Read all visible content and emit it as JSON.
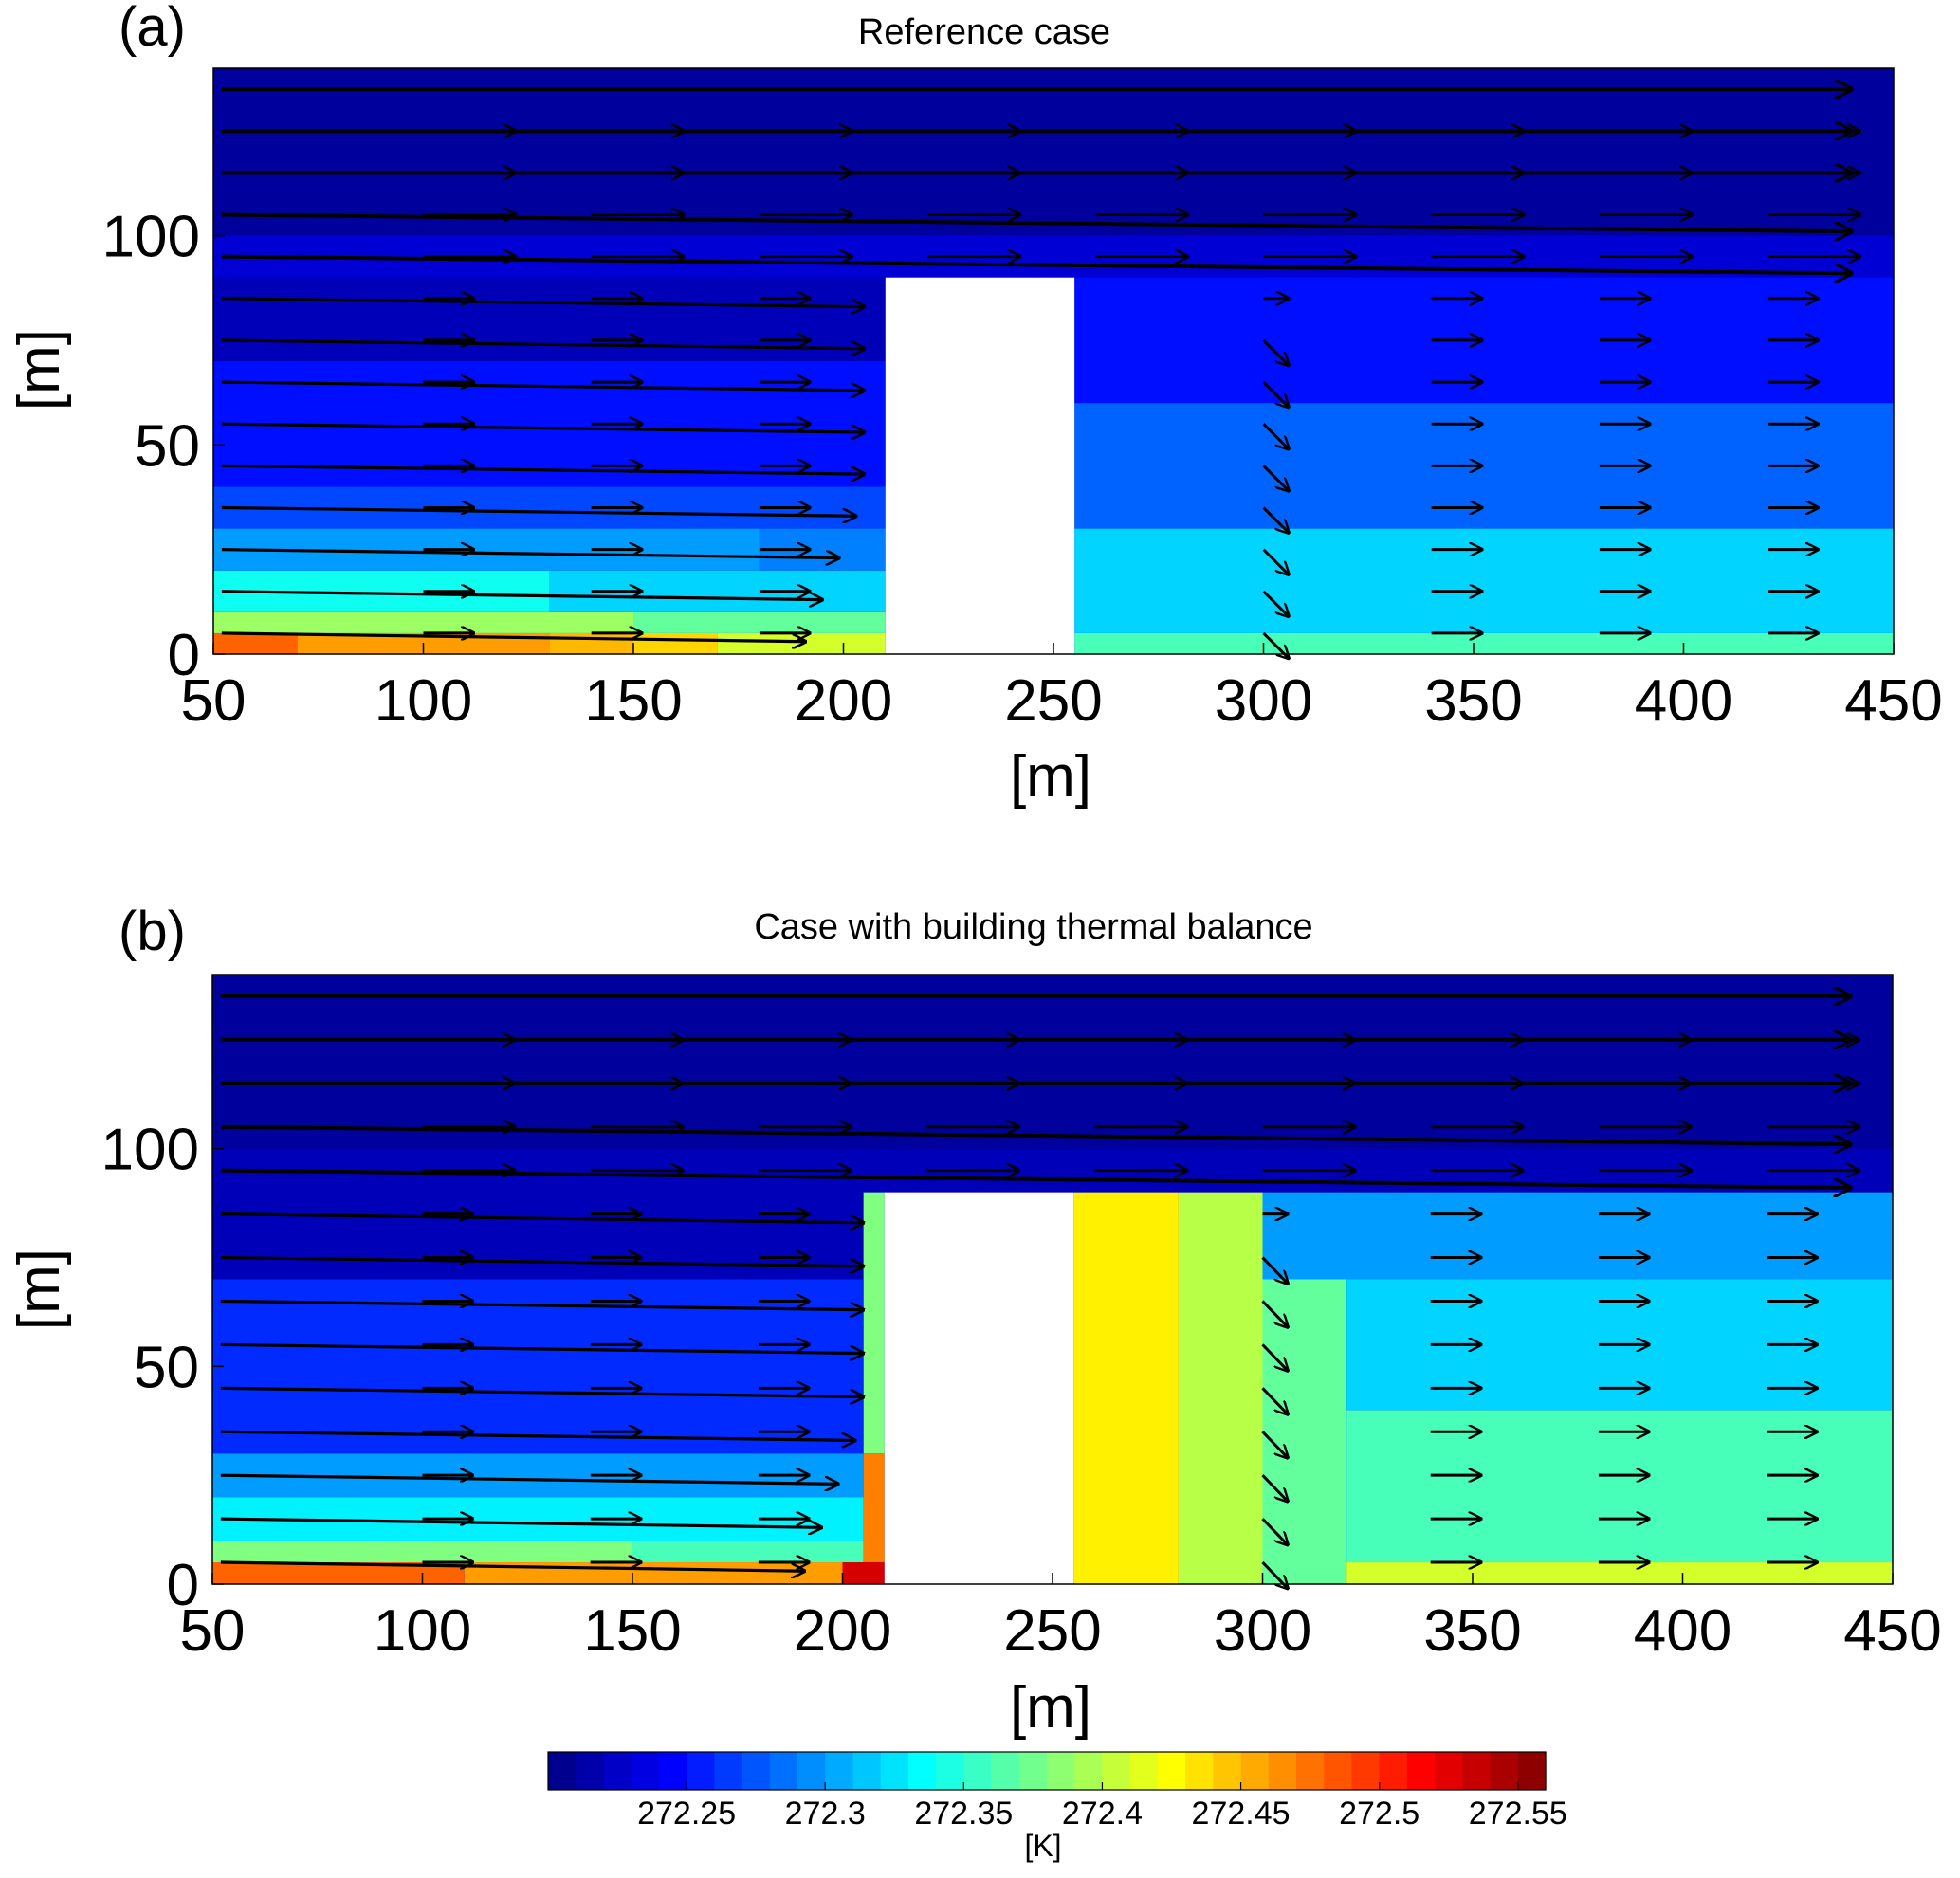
{
  "chart_data": [
    {
      "panel": "(a)",
      "type": "heatmap",
      "title": "Reference case",
      "xlabel": "[m]",
      "ylabel": "[m]",
      "xlim": [
        50,
        450
      ],
      "ylim": [
        0,
        140
      ],
      "xticks": [
        "50",
        "100",
        "150",
        "200",
        "250",
        "300",
        "350",
        "400",
        "450"
      ],
      "yticks": [
        "0",
        "50",
        "100"
      ],
      "building": {
        "x": [
          210,
          255
        ],
        "y": [
          0,
          90
        ]
      },
      "overlay": "wind velocity vectors",
      "temperature_field": [
        {
          "x": [
            50,
            70
          ],
          "y": [
            0,
            5
          ],
          "T": 272.48
        },
        {
          "x": [
            70,
            130
          ],
          "y": [
            0,
            5
          ],
          "T": 272.46
        },
        {
          "x": [
            130,
            150
          ],
          "y": [
            0,
            5
          ],
          "T": 272.45
        },
        {
          "x": [
            150,
            170
          ],
          "y": [
            0,
            5
          ],
          "T": 272.44
        },
        {
          "x": [
            170,
            210
          ],
          "y": [
            0,
            5
          ],
          "T": 272.41
        },
        {
          "x": [
            50,
            150
          ],
          "y": [
            5,
            10
          ],
          "T": 272.39
        },
        {
          "x": [
            150,
            210
          ],
          "y": [
            5,
            10
          ],
          "T": 272.37
        },
        {
          "x": [
            50,
            130
          ],
          "y": [
            10,
            20
          ],
          "T": 272.34
        },
        {
          "x": [
            130,
            210
          ],
          "y": [
            10,
            20
          ],
          "T": 272.32
        },
        {
          "x": [
            50,
            180
          ],
          "y": [
            20,
            30
          ],
          "T": 272.3
        },
        {
          "x": [
            180,
            210
          ],
          "y": [
            20,
            30
          ],
          "T": 272.29
        },
        {
          "x": [
            50,
            210
          ],
          "y": [
            30,
            40
          ],
          "T": 272.27
        },
        {
          "x": [
            50,
            210
          ],
          "y": [
            40,
            70
          ],
          "T": 272.25
        },
        {
          "x": [
            50,
            450
          ],
          "y": [
            100,
            140
          ],
          "T": 272.21
        },
        {
          "x": [
            50,
            450
          ],
          "y": [
            90,
            100
          ],
          "T": 272.23
        },
        {
          "x": [
            255,
            450
          ],
          "y": [
            0,
            5
          ],
          "T": 272.36
        },
        {
          "x": [
            255,
            450
          ],
          "y": [
            5,
            30
          ],
          "T": 272.32
        },
        {
          "x": [
            255,
            450
          ],
          "y": [
            30,
            60
          ],
          "T": 272.28
        },
        {
          "x": [
            255,
            450
          ],
          "y": [
            60,
            90
          ],
          "T": 272.25
        }
      ]
    },
    {
      "panel": "(b)",
      "type": "heatmap",
      "title": "Case with building thermal balance",
      "xlabel": "[m]",
      "ylabel": "[m]",
      "xlim": [
        50,
        450
      ],
      "ylim": [
        0,
        140
      ],
      "xticks": [
        "50",
        "100",
        "150",
        "200",
        "250",
        "300",
        "350",
        "400",
        "450"
      ],
      "yticks": [
        "0",
        "50",
        "100"
      ],
      "building": {
        "x": [
          210,
          255
        ],
        "y": [
          0,
          90
        ]
      },
      "overlay": "wind velocity vectors",
      "temperature_field": [
        {
          "x": [
            50,
            110
          ],
          "y": [
            0,
            5
          ],
          "T": 272.48
        },
        {
          "x": [
            110,
            200
          ],
          "y": [
            0,
            5
          ],
          "T": 272.46
        },
        {
          "x": [
            200,
            210
          ],
          "y": [
            0,
            5
          ],
          "T": 272.53
        },
        {
          "x": [
            50,
            150
          ],
          "y": [
            5,
            10
          ],
          "T": 272.38
        },
        {
          "x": [
            150,
            205
          ],
          "y": [
            5,
            10
          ],
          "T": 272.36
        },
        {
          "x": [
            205,
            210
          ],
          "y": [
            5,
            30
          ],
          "T": 272.47
        },
        {
          "x": [
            50,
            205
          ],
          "y": [
            10,
            20
          ],
          "T": 272.33
        },
        {
          "x": [
            50,
            205
          ],
          "y": [
            20,
            30
          ],
          "T": 272.3
        },
        {
          "x": [
            205,
            210
          ],
          "y": [
            30,
            90
          ],
          "T": 272.38
        },
        {
          "x": [
            50,
            205
          ],
          "y": [
            30,
            70
          ],
          "T": 272.26
        },
        {
          "x": [
            50,
            450
          ],
          "y": [
            100,
            140
          ],
          "T": 272.21
        },
        {
          "x": [
            255,
            280
          ],
          "y": [
            0,
            90
          ],
          "T": 272.43
        },
        {
          "x": [
            280,
            300
          ],
          "y": [
            0,
            90
          ],
          "T": 272.4
        },
        {
          "x": [
            300,
            320
          ],
          "y": [
            0,
            70
          ],
          "T": 272.37
        },
        {
          "x": [
            320,
            450
          ],
          "y": [
            0,
            5
          ],
          "T": 272.41
        },
        {
          "x": [
            320,
            450
          ],
          "y": [
            5,
            40
          ],
          "T": 272.36
        },
        {
          "x": [
            320,
            450
          ],
          "y": [
            40,
            70
          ],
          "T": 272.32
        },
        {
          "x": [
            300,
            450
          ],
          "y": [
            70,
            90
          ],
          "T": 272.3
        }
      ]
    }
  ],
  "colorbar": {
    "range": [
      272.2,
      272.56
    ],
    "ticks": [
      "272.25",
      "272.3",
      "272.35",
      "272.4",
      "272.45",
      "272.5",
      "272.55"
    ],
    "unit": "[K]",
    "colormap": "jet"
  },
  "panels": [
    {
      "label": "(a)",
      "title": "Reference case",
      "xlabel": "[m]",
      "ylabel": "[m]"
    },
    {
      "label": "(b)",
      "title": "Case with building thermal balance",
      "xlabel": "[m]",
      "ylabel": "[m]"
    }
  ]
}
